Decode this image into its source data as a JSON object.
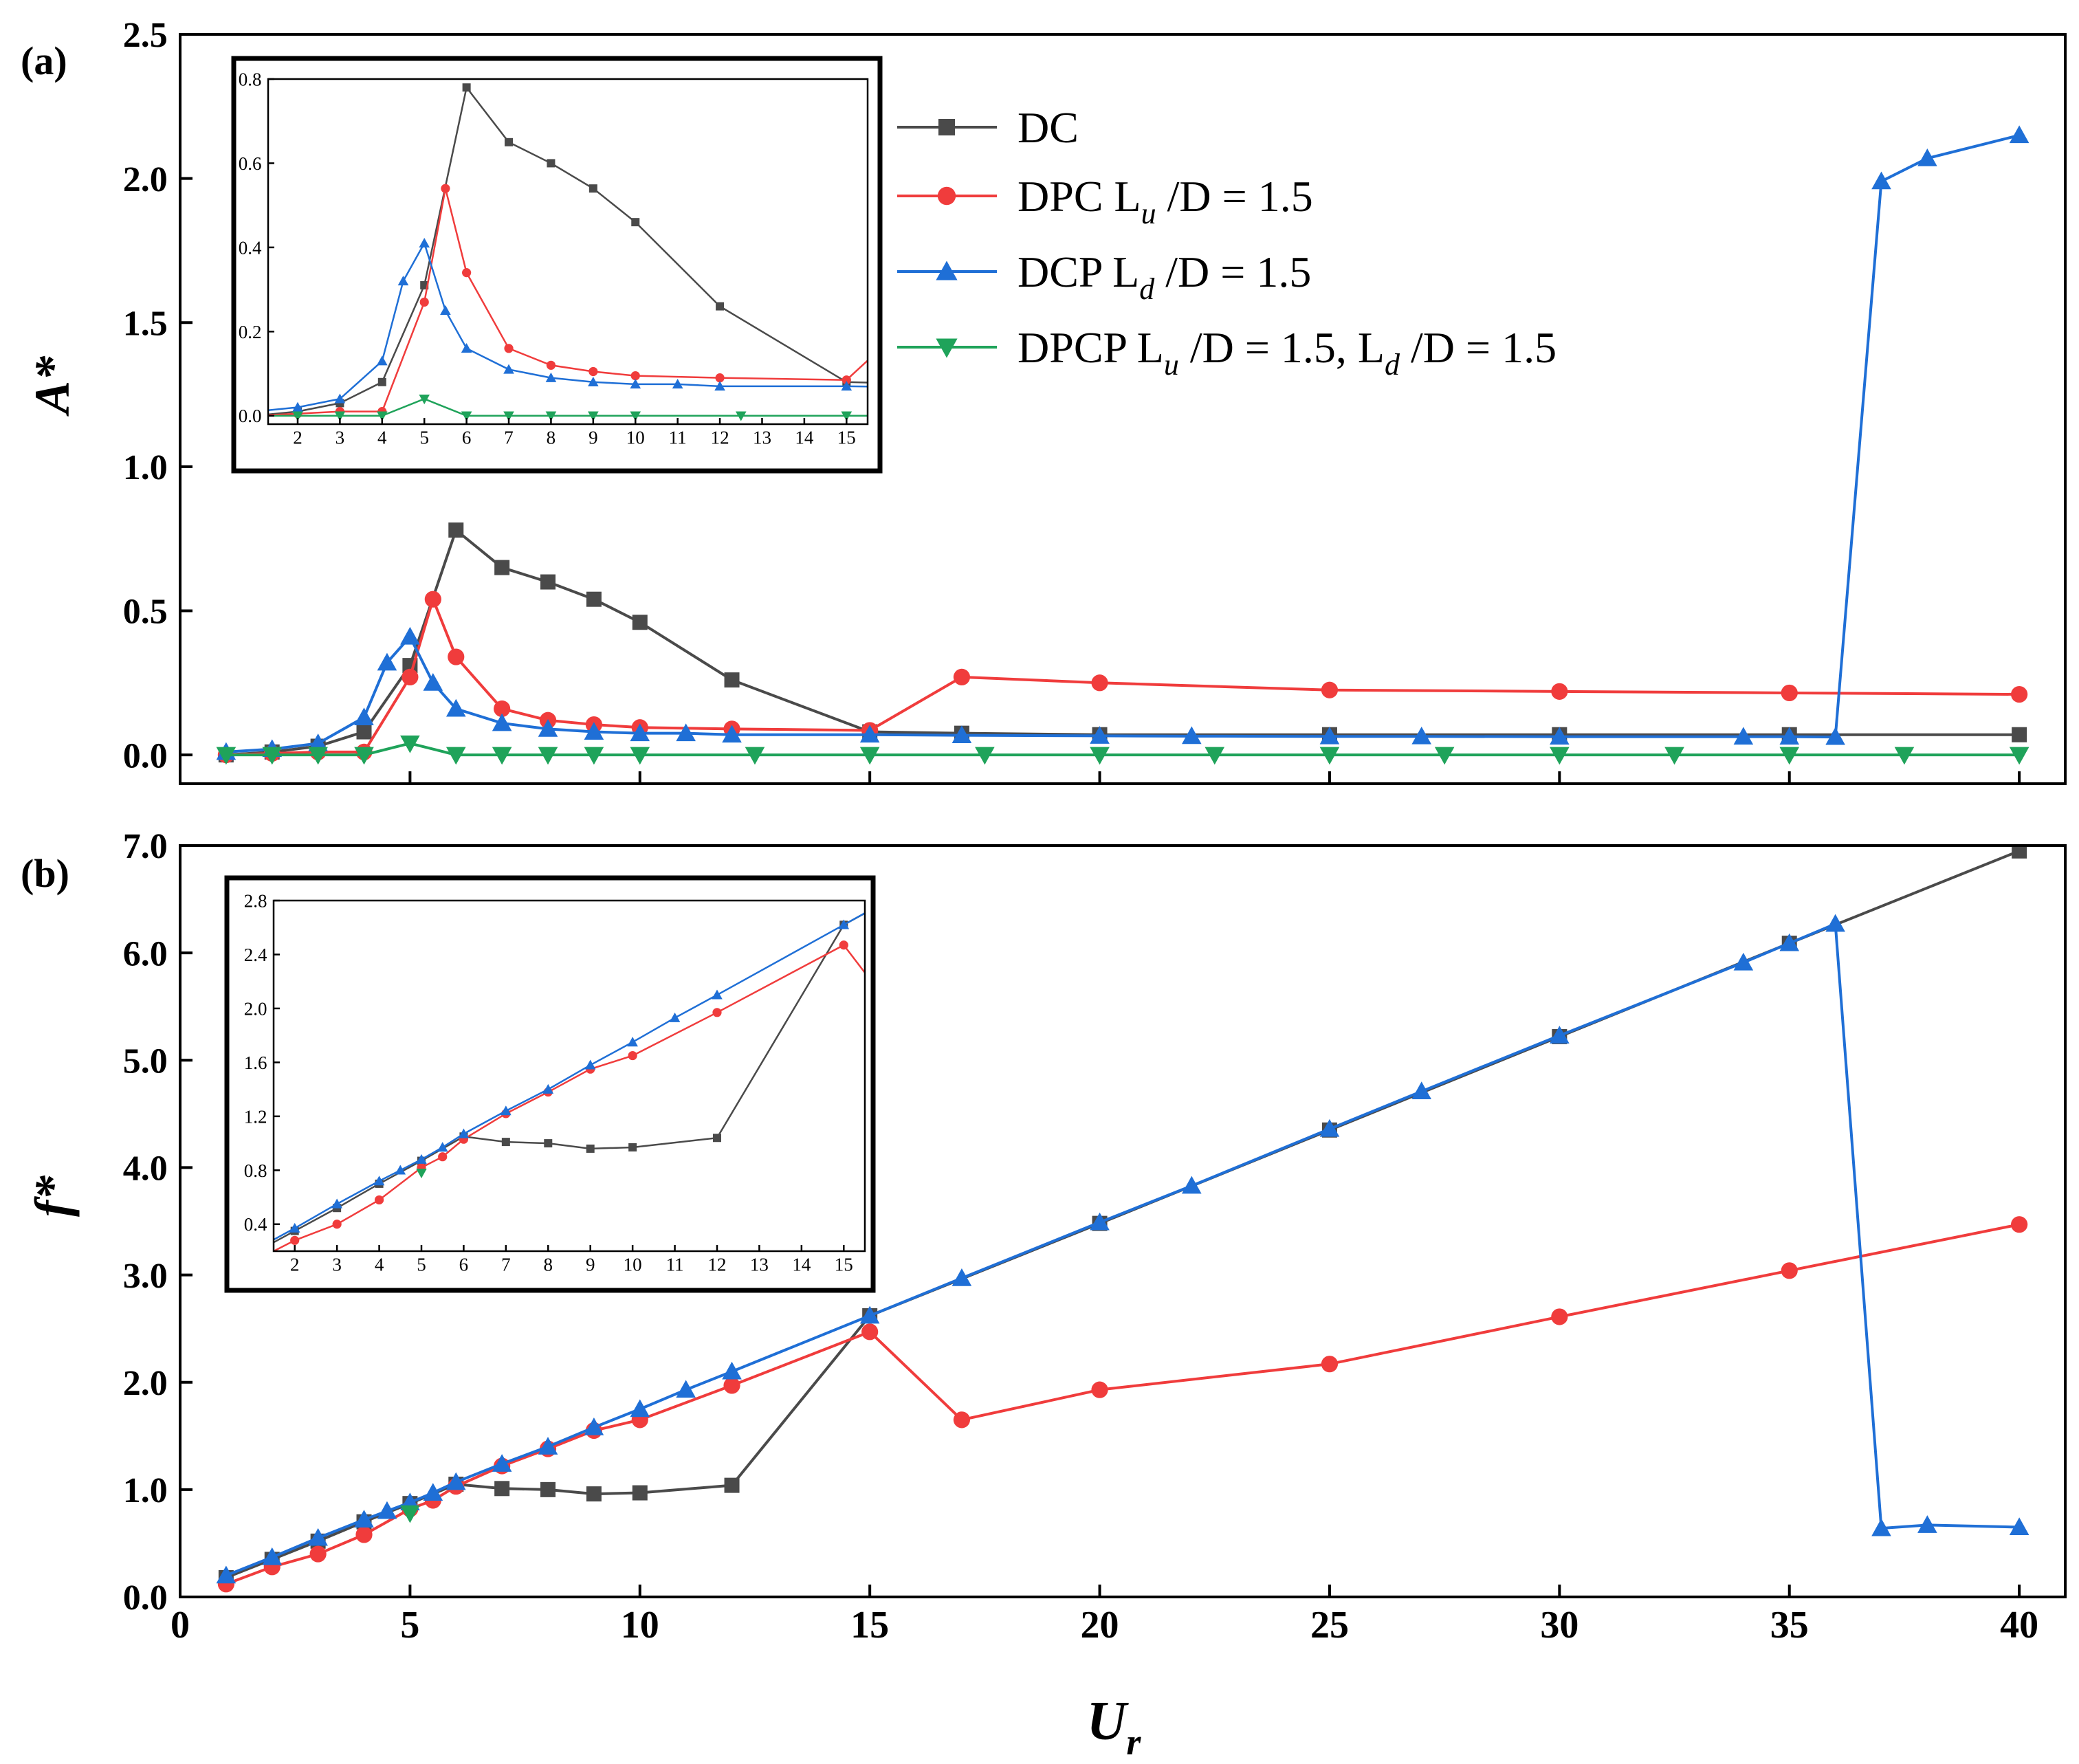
{
  "colors": {
    "DC": "#4a4a4a",
    "DPC": "#f03c3c",
    "DCP": "#1f6fd6",
    "DPCP": "#1fa35a"
  },
  "legend": {
    "dc": {
      "name": "DC",
      "sub": "",
      "rest": ""
    },
    "dpc": {
      "name": "DPC L",
      "sub": "u",
      "rest": " /D = 1.5"
    },
    "dcp": {
      "name": "DCP L",
      "sub": "d",
      "rest": " /D = 1.5"
    },
    "dpcp": {
      "name": "DPCP L",
      "sub": "u",
      "rest": " /D = 1.5, L",
      "sub2": "d",
      "rest2": " /D = 1.5"
    }
  },
  "chart_data": [
    {
      "panel_label": "(a)",
      "type": "line",
      "ylabel": "A*",
      "xlim": [
        0,
        41
      ],
      "ylim": [
        -0.1,
        2.5
      ],
      "yticks": [
        "0.0",
        "0.5",
        "1.0",
        "1.5",
        "2.0",
        "2.5"
      ],
      "series": [
        {
          "name": "DC",
          "marker": "square",
          "x": [
            1,
            2,
            3,
            4,
            5,
            6,
            7,
            8,
            9,
            10,
            12,
            15,
            17,
            20,
            25,
            30,
            35,
            40
          ],
          "y": [
            0.0,
            0.01,
            0.03,
            0.08,
            0.31,
            0.78,
            0.65,
            0.6,
            0.54,
            0.46,
            0.26,
            0.08,
            0.075,
            0.07,
            0.07,
            0.07,
            0.07,
            0.07
          ]
        },
        {
          "name": "DPC",
          "marker": "circle",
          "x": [
            1,
            2,
            3,
            4,
            5,
            5.5,
            6,
            7,
            8,
            9,
            10,
            12,
            15,
            17,
            20,
            25,
            30,
            35,
            40
          ],
          "y": [
            0.0,
            0.005,
            0.01,
            0.01,
            0.27,
            0.54,
            0.34,
            0.16,
            0.12,
            0.105,
            0.095,
            0.09,
            0.085,
            0.27,
            0.25,
            0.225,
            0.22,
            0.215,
            0.21
          ]
        },
        {
          "name": "DCP",
          "marker": "triangle-up",
          "x": [
            1,
            2,
            3,
            4,
            4.5,
            5,
            5.5,
            6,
            7,
            8,
            9,
            10,
            11,
            12,
            15,
            17,
            20,
            22,
            25,
            27,
            30,
            34,
            35,
            36,
            37,
            38,
            40
          ],
          "y": [
            0.01,
            0.02,
            0.04,
            0.13,
            0.32,
            0.41,
            0.25,
            0.16,
            0.11,
            0.09,
            0.08,
            0.075,
            0.075,
            0.07,
            0.07,
            0.068,
            0.066,
            0.065,
            0.064,
            0.064,
            0.063,
            0.063,
            0.063,
            0.062,
            1.99,
            2.07,
            2.15
          ]
        },
        {
          "name": "DPCP",
          "marker": "triangle-down",
          "x": [
            1,
            2,
            3,
            4,
            5,
            6,
            7,
            8,
            9,
            10,
            12.5,
            15,
            17.5,
            20,
            22.5,
            25,
            27.5,
            30,
            32.5,
            35,
            37.5,
            40
          ],
          "y": [
            0.0,
            0.0,
            0.0,
            0.0,
            0.04,
            0.0,
            0.0,
            0.0,
            0.0,
            0.0,
            0.0,
            0.0,
            0.0,
            0.0,
            0.0,
            0.0,
            0.0,
            0.0,
            0.0,
            0.0,
            0.0,
            0.0
          ]
        }
      ],
      "inset": {
        "xlim": [
          1.3,
          15.5
        ],
        "ylim": [
          -0.02,
          0.8
        ],
        "xticks": [
          "2",
          "3",
          "4",
          "5",
          "6",
          "7",
          "8",
          "9",
          "10",
          "11",
          "12",
          "13",
          "14",
          "15"
        ],
        "yticks": [
          "0.0",
          "0.2",
          "0.4",
          "0.6",
          "0.8"
        ]
      }
    },
    {
      "panel_label": "(b)",
      "type": "line",
      "ylabel": "f*",
      "xlabel": "U",
      "xlabel_sub": "r",
      "xlim": [
        0,
        41
      ],
      "xticks": [
        "0",
        "5",
        "10",
        "15",
        "20",
        "25",
        "30",
        "35",
        "40"
      ],
      "ylim": [
        0,
        7.0
      ],
      "yticks": [
        "0.0",
        "1.0",
        "2.0",
        "3.0",
        "4.0",
        "5.0",
        "6.0",
        "7.0"
      ],
      "series": [
        {
          "name": "DC",
          "marker": "square",
          "x": [
            1,
            2,
            3,
            4,
            5,
            6,
            7,
            8,
            9,
            10,
            12,
            15,
            20,
            25,
            30,
            35,
            40
          ],
          "y": [
            0.18,
            0.35,
            0.52,
            0.7,
            0.87,
            1.05,
            1.01,
            1.0,
            0.96,
            0.97,
            1.04,
            2.62,
            3.48,
            4.35,
            5.22,
            6.09,
            6.95
          ]
        },
        {
          "name": "DPC",
          "marker": "circle",
          "x": [
            1,
            2,
            3,
            4,
            5,
            5.5,
            6,
            7,
            8,
            9,
            10,
            12,
            15,
            17,
            20,
            25,
            30,
            35,
            40
          ],
          "y": [
            0.12,
            0.28,
            0.4,
            0.58,
            0.82,
            0.9,
            1.03,
            1.22,
            1.38,
            1.55,
            1.65,
            1.97,
            2.47,
            1.65,
            1.93,
            2.17,
            2.61,
            3.04,
            3.47
          ]
        },
        {
          "name": "DCP",
          "marker": "triangle-up",
          "x": [
            1,
            2,
            3,
            4,
            4.5,
            5,
            5.5,
            6,
            7,
            8,
            9,
            10,
            11,
            12,
            15,
            17,
            20,
            22,
            25,
            27,
            30,
            34,
            35,
            36,
            37,
            38,
            40
          ],
          "y": [
            0.2,
            0.37,
            0.55,
            0.72,
            0.8,
            0.88,
            0.97,
            1.07,
            1.24,
            1.4,
            1.58,
            1.75,
            1.93,
            2.1,
            2.62,
            2.97,
            3.49,
            3.83,
            4.36,
            4.71,
            5.23,
            5.91,
            6.09,
            6.27,
            0.64,
            0.67,
            0.65
          ]
        },
        {
          "name": "DPCP",
          "marker": "triangle-down",
          "x": [
            5
          ],
          "y": [
            0.78
          ]
        }
      ],
      "inset": {
        "xlim": [
          1.5,
          15.5
        ],
        "ylim": [
          0.2,
          2.8
        ],
        "xticks": [
          "2",
          "3",
          "4",
          "5",
          "6",
          "7",
          "8",
          "9",
          "10",
          "11",
          "12",
          "13",
          "14",
          "15"
        ],
        "yticks": [
          "0.4",
          "0.8",
          "1.2",
          "1.6",
          "2.0",
          "2.4",
          "2.8"
        ]
      }
    }
  ]
}
